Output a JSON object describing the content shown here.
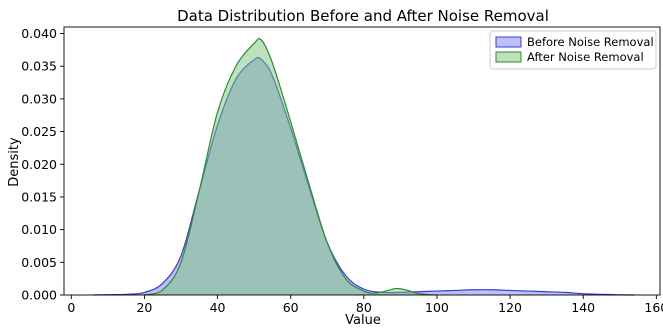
{
  "chart_data": {
    "type": "area",
    "title": "Data Distribution Before and After Noise Removal",
    "xlabel": "Value",
    "ylabel": "Density",
    "xlim": [
      -2,
      161
    ],
    "ylim": [
      0,
      0.041
    ],
    "xticks": [
      0,
      20,
      40,
      60,
      80,
      100,
      120,
      140,
      160
    ],
    "yticks": [
      0.0,
      0.005,
      0.01,
      0.015,
      0.02,
      0.025,
      0.03,
      0.035,
      0.04
    ],
    "ytick_labels": [
      "0.000",
      "0.005",
      "0.010",
      "0.015",
      "0.020",
      "0.025",
      "0.030",
      "0.035",
      "0.040"
    ],
    "grid": false,
    "legend_position": "top-right",
    "series": [
      {
        "name": "Before Noise Removal",
        "line_color": "#3b3bd6",
        "fill_color": "#8080f0",
        "x": [
          6,
          10,
          15,
          20,
          25,
          30,
          35,
          40,
          45,
          50,
          52,
          55,
          60,
          65,
          70,
          75,
          80,
          85,
          90,
          95,
          100,
          105,
          110,
          115,
          120,
          125,
          130,
          135,
          140,
          145,
          150,
          154
        ],
        "y": [
          0.0,
          5e-05,
          0.0001,
          0.0004,
          0.0018,
          0.006,
          0.016,
          0.026,
          0.033,
          0.036,
          0.036,
          0.0335,
          0.0255,
          0.0165,
          0.008,
          0.003,
          0.0009,
          0.0004,
          0.0004,
          0.0005,
          0.0006,
          0.0007,
          0.0008,
          0.0008,
          0.0007,
          0.0006,
          0.0005,
          0.0004,
          0.0002,
          0.0001,
          3e-05,
          0.0
        ]
      },
      {
        "name": "After Noise Removal",
        "line_color": "#2e8b2e",
        "fill_color": "#7ac47a",
        "x": [
          20,
          25,
          30,
          35,
          40,
          45,
          50,
          52,
          55,
          60,
          65,
          70,
          75,
          80,
          83,
          86,
          89,
          92,
          95,
          100
        ],
        "y": [
          0.0,
          0.0008,
          0.005,
          0.016,
          0.028,
          0.035,
          0.0385,
          0.039,
          0.0355,
          0.0265,
          0.017,
          0.008,
          0.0025,
          0.0006,
          0.0003,
          0.0006,
          0.001,
          0.0007,
          0.0002,
          0.0
        ]
      }
    ]
  }
}
